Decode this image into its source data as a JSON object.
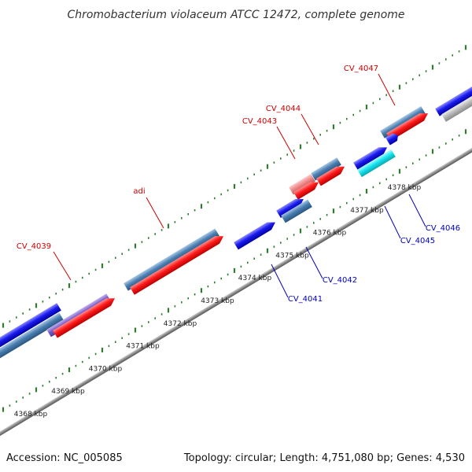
{
  "title": "Chromobacterium violaceum ATCC 12472, complete genome",
  "footer": {
    "accession": "Accession: NC_005085",
    "summary": "Topology: circular; Length: 4,751,080 bp; Genes: 4,530"
  },
  "colors": {
    "backbone": "#8a8a8a",
    "tick": "#2e7d2e",
    "forward_label": "#cc0000",
    "reverse_label": "#0000bb",
    "red": "#ff1a1a",
    "steelblue": "#4a7fb0",
    "blue": "#1a1aee",
    "purple": "#7a5cc8",
    "pink": "#f08a8a",
    "cyan": "#19e6f0",
    "gray": "#bdbdbd"
  },
  "scale_labels": [
    "4368 kbp",
    "4369 kbp",
    "4370 kbp",
    "4371 kbp",
    "4372 kbp",
    "4373 kbp",
    "4374 kbp",
    "4375 kbp",
    "4376 kbp",
    "4377 kbp",
    "4378 kbp"
  ],
  "gene_labels": [
    {
      "text": "CV_4039",
      "strand": "forward"
    },
    {
      "text": "adi",
      "strand": "forward"
    },
    {
      "text": "CV_4043",
      "strand": "forward"
    },
    {
      "text": "CV_4044",
      "strand": "forward"
    },
    {
      "text": "CV_4047",
      "strand": "forward"
    },
    {
      "text": "CV_4041",
      "strand": "reverse"
    },
    {
      "text": "CV_4042",
      "strand": "reverse"
    },
    {
      "text": "CV_4045",
      "strand": "reverse"
    },
    {
      "text": "CV_4046",
      "strand": "reverse"
    }
  ]
}
